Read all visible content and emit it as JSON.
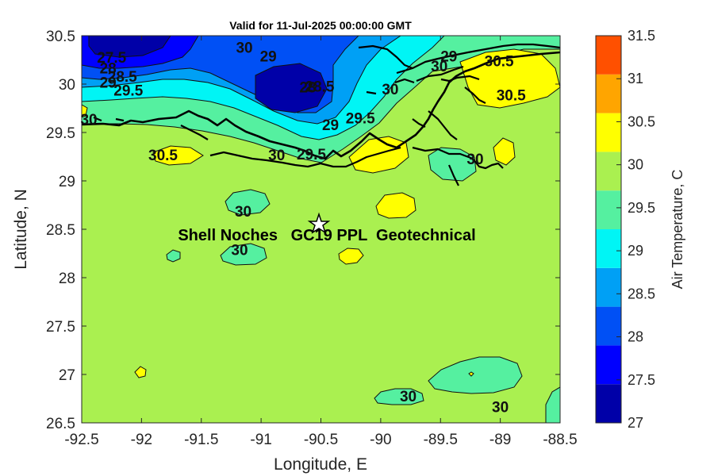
{
  "chart_data": {
    "type": "heatmap",
    "title": "Valid for 11-Jul-2025 00:00:00 GMT",
    "xlabel": "Longitude, E",
    "ylabel": "Latitude, N",
    "xlim": [
      -92.5,
      -88.5
    ],
    "ylim": [
      26.5,
      30.5
    ],
    "x_ticks": [
      "-92.5",
      "-92",
      "-91.5",
      "-91",
      "-90.5",
      "-90",
      "-89.5",
      "-89",
      "-88.5"
    ],
    "y_ticks": [
      "30.5",
      "30",
      "29.5",
      "29",
      "28.5",
      "28",
      "27.5",
      "27",
      "26.5"
    ],
    "colorbar": {
      "label": "Air Temperature, C",
      "ticks": [
        "31.5",
        "31",
        "30.5",
        "30",
        "29.5",
        "29",
        "28.5",
        "28",
        "27.5",
        "27"
      ],
      "levels": [
        {
          "min": 27.0,
          "max": 27.5,
          "color": "#0000a8"
        },
        {
          "min": 27.5,
          "max": 28.0,
          "color": "#0000ff"
        },
        {
          "min": 28.0,
          "max": 28.5,
          "color": "#0050f5"
        },
        {
          "min": 28.5,
          "max": 29.0,
          "color": "#00a0f5"
        },
        {
          "min": 29.0,
          "max": 29.5,
          "color": "#00f5f5"
        },
        {
          "min": 29.5,
          "max": 30.0,
          "color": "#55f0a0"
        },
        {
          "min": 30.0,
          "max": 30.5,
          "color": "#aaf050"
        },
        {
          "min": 30.5,
          "max": 31.0,
          "color": "#ffff00"
        },
        {
          "min": 31.0,
          "max": 31.5,
          "color": "#ffa500"
        },
        {
          "min": 31.5,
          "max": 32.0,
          "color": "#ff5000"
        }
      ]
    },
    "contour_labels": [
      {
        "text": "27.5",
        "lon": -92.25,
        "lat": 30.28
      },
      {
        "text": "28",
        "lon": -92.28,
        "lat": 30.17
      },
      {
        "text": "28.5",
        "lon": -92.16,
        "lat": 30.08
      },
      {
        "text": "29",
        "lon": -92.28,
        "lat": 30.02
      },
      {
        "text": "29.5",
        "lon": -92.11,
        "lat": 29.94
      },
      {
        "text": "30",
        "lon": -91.14,
        "lat": 30.38
      },
      {
        "text": "29",
        "lon": -90.94,
        "lat": 30.29
      },
      {
        "text": "28",
        "lon": -90.61,
        "lat": 29.97
      },
      {
        "text": "28.5",
        "lon": -90.51,
        "lat": 29.98
      },
      {
        "text": "30",
        "lon": -89.92,
        "lat": 29.95
      },
      {
        "text": "29",
        "lon": -90.42,
        "lat": 29.58
      },
      {
        "text": "29.5",
        "lon": -90.17,
        "lat": 29.65
      },
      {
        "text": "29",
        "lon": -89.43,
        "lat": 30.29
      },
      {
        "text": "30",
        "lon": -89.51,
        "lat": 30.19
      },
      {
        "text": "30.5",
        "lon": -89.01,
        "lat": 30.24
      },
      {
        "text": "30.5",
        "lon": -88.91,
        "lat": 29.89
      },
      {
        "text": "30",
        "lon": -92.44,
        "lat": 29.64
      },
      {
        "text": "30.5",
        "lon": -91.82,
        "lat": 29.27
      },
      {
        "text": "30",
        "lon": -90.87,
        "lat": 29.27
      },
      {
        "text": "29.5",
        "lon": -90.58,
        "lat": 29.28
      },
      {
        "text": "30",
        "lon": -89.21,
        "lat": 29.23
      },
      {
        "text": "30",
        "lon": -91.15,
        "lat": 28.69
      },
      {
        "text": "30",
        "lon": -91.18,
        "lat": 28.29
      },
      {
        "text": "30",
        "lon": -89.0,
        "lat": 26.67
      },
      {
        "text": "30",
        "lon": -89.77,
        "lat": 26.78
      }
    ],
    "site": {
      "label": "Shell Noches   GC19 PPL  Geotechnical",
      "lon": -90.52,
      "lat": 28.56
    }
  },
  "colors": {
    "background_field": "#aaf050",
    "coastline": "#000000"
  }
}
